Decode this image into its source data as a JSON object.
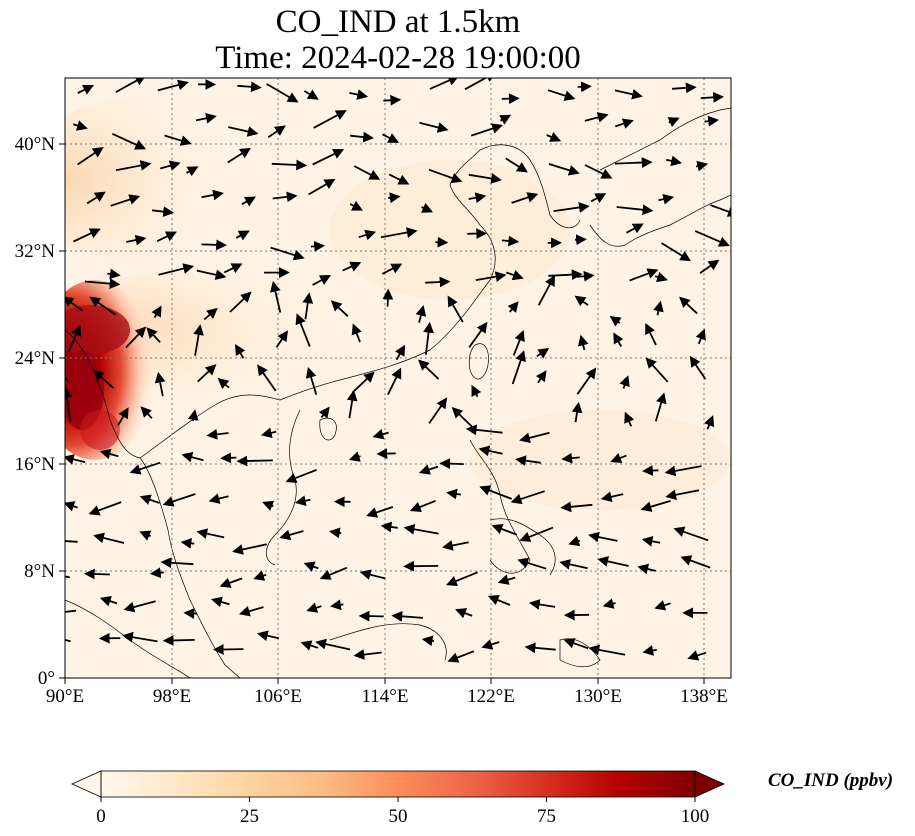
{
  "title": {
    "line1": "CO_IND at 1.5km",
    "line2": "Time: 2024-02-28 19:00:00"
  },
  "map": {
    "variable": "CO_IND",
    "height": "1.5km",
    "time": "2024-02-28 19:00:00",
    "lon_range": [
      90,
      140
    ],
    "lat_range": [
      0,
      45
    ],
    "gridlines": "dotted",
    "x_ticks": [
      "90°E",
      "98°E",
      "106°E",
      "114°E",
      "122°E",
      "130°E",
      "138°E"
    ],
    "y_ticks": [
      "0°",
      "8°N",
      "16°N",
      "24°N",
      "32°N",
      "40°N"
    ],
    "field_colormap": "OrRd",
    "high_concentration_region": "northeast India / Bangladesh / Myanmar, near 90–95°E, 17–28°N",
    "overlay": "wind vectors"
  },
  "colorbar": {
    "label": "CO_IND (ppbv)",
    "ticks": [
      "0",
      "25",
      "50",
      "75",
      "100"
    ],
    "range": [
      0,
      100
    ],
    "extend": "both",
    "colors": [
      "#fff7ec",
      "#fee8c8",
      "#fdd49e",
      "#fdbb84",
      "#fc8d59",
      "#ef6548",
      "#d7301f",
      "#b30000",
      "#7f0000"
    ]
  }
}
